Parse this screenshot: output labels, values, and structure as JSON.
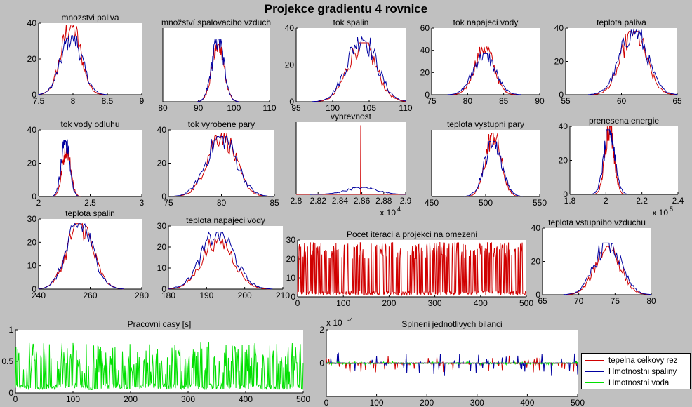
{
  "figure": {
    "title": "Projekce gradientu 4 rovnice",
    "legend": [
      {
        "label": "tepelna celkovy rez",
        "color": "#d00000"
      },
      {
        "label": "Hmotnostni spaliny",
        "color": "#0000a0"
      },
      {
        "label": "Hmotnostni voda",
        "color": "#00e000"
      }
    ]
  },
  "chart_data": [
    {
      "id": "mnozstvi-paliva",
      "type": "line",
      "title": "mnozstvi paliva",
      "xlim": [
        7.5,
        9
      ],
      "ylim": [
        0,
        40
      ],
      "xticks": [
        "7.5",
        "8",
        "8.5",
        "9"
      ],
      "yticks": [
        "0",
        "20",
        "40"
      ],
      "series": [
        {
          "color": "#d00000",
          "peak_x": 7.97,
          "peak_y": 39,
          "width": 0.14
        },
        {
          "color": "#0000a0",
          "peak_x": 7.98,
          "peak_y": 33,
          "width": 0.15
        }
      ]
    },
    {
      "id": "mnozstvi-spalovaciho-vzduch",
      "type": "line",
      "title": "množství spalovaciho vzduch",
      "xlim": [
        80,
        110
      ],
      "ylim": [
        0,
        40
      ],
      "xticks": [
        "80",
        "90",
        "100",
        "110"
      ],
      "yticks": [],
      "series": [
        {
          "color": "#d00000",
          "peak_x": 95.5,
          "peak_y": 31,
          "width": 1.7
        },
        {
          "color": "#0000a0",
          "peak_x": 95.5,
          "peak_y": 34,
          "width": 1.7
        }
      ]
    },
    {
      "id": "tok-spalin",
      "type": "line",
      "title": "tok spalin",
      "xlim": [
        95,
        110
      ],
      "ylim": [
        0,
        40
      ],
      "xticks": [
        "95",
        "100",
        "105",
        "110"
      ],
      "yticks": [
        "0",
        "20",
        "40"
      ],
      "series": [
        {
          "color": "#d00000",
          "peak_x": 104,
          "peak_y": 32,
          "width": 1.9
        },
        {
          "color": "#0000a0",
          "peak_x": 104,
          "peak_y": 35,
          "width": 2.0
        }
      ]
    },
    {
      "id": "tok-napajeci-vody",
      "type": "line",
      "title": "tok napajeci vody",
      "xlim": [
        75,
        90
      ],
      "ylim": [
        0,
        60
      ],
      "xticks": [
        "75",
        "80",
        "85",
        "90"
      ],
      "yticks": [
        "0",
        "20",
        "40",
        "60"
      ],
      "series": [
        {
          "color": "#d00000",
          "peak_x": 82.3,
          "peak_y": 43,
          "width": 1.3
        },
        {
          "color": "#0000a0",
          "peak_x": 82.3,
          "peak_y": 37,
          "width": 1.5
        }
      ]
    },
    {
      "id": "teplota-paliva",
      "type": "line",
      "title": "teplota paliva",
      "xlim": [
        55,
        65
      ],
      "ylim": [
        0,
        40
      ],
      "xticks": [
        "55",
        "60",
        "65"
      ],
      "yticks": [
        "0",
        "20",
        "40"
      ],
      "series": [
        {
          "color": "#d00000",
          "peak_x": 61.1,
          "peak_y": 38,
          "width": 1.1
        },
        {
          "color": "#0000a0",
          "peak_x": 61.1,
          "peak_y": 39,
          "width": 1.2
        }
      ]
    },
    {
      "id": "tok-vody-odluhu",
      "type": "line",
      "title": "tok vody odluhu",
      "xlim": [
        2,
        3
      ],
      "ylim": [
        0,
        40
      ],
      "xticks": [
        "2",
        "2.5",
        "3"
      ],
      "yticks": [
        "0",
        "20",
        "40"
      ],
      "series": [
        {
          "color": "#d00000",
          "peak_x": 2.27,
          "peak_y": 29,
          "width": 0.04
        },
        {
          "color": "#0000a0",
          "peak_x": 2.26,
          "peak_y": 34,
          "width": 0.04
        }
      ]
    },
    {
      "id": "tok-vyrobene-pary",
      "type": "line",
      "title": "tok vyrobene pary",
      "xlim": [
        75,
        85
      ],
      "ylim": [
        0,
        40
      ],
      "xticks": [
        "75",
        "80",
        "85"
      ],
      "yticks": [
        "0",
        "20",
        "40"
      ],
      "series": [
        {
          "color": "#d00000",
          "peak_x": 80,
          "peak_y": 38,
          "width": 1.3
        },
        {
          "color": "#0000a0",
          "peak_x": 80,
          "peak_y": 36,
          "width": 1.4
        }
      ]
    },
    {
      "id": "vyhrevnost",
      "type": "line",
      "title": "vyhrevnost",
      "xlim": [
        2.8,
        2.9
      ],
      "ylim": [
        0,
        230
      ],
      "xticks": [
        "2.8",
        "2.82",
        "2.84",
        "2.86",
        "2.88",
        "2.9"
      ],
      "yticks": [],
      "x_multiplier": "x 10",
      "x_exponent": "4",
      "series": [
        {
          "color": "#d00000",
          "spike_x": 2.859,
          "spike_y": 220
        },
        {
          "color": "#0000a0",
          "peak_x": 2.86,
          "peak_y": 22,
          "width": 0.014
        }
      ]
    },
    {
      "id": "teplota-vystupni-pary",
      "type": "line",
      "title": "teplota vystupni pary",
      "xlim": [
        450,
        550
      ],
      "ylim": [
        0,
        40
      ],
      "xticks": [
        "450",
        "500",
        "550"
      ],
      "yticks": [],
      "series": [
        {
          "color": "#d00000",
          "peak_x": 507,
          "peak_y": 38,
          "width": 7
        },
        {
          "color": "#0000a0",
          "peak_x": 507,
          "peak_y": 33,
          "width": 8
        }
      ]
    },
    {
      "id": "prenesena-energie",
      "type": "line",
      "title": "prenesena energie",
      "xlim": [
        1.8,
        2.4
      ],
      "ylim": [
        0,
        40
      ],
      "xticks": [
        "1.8",
        "2",
        "2.2",
        "2.4"
      ],
      "yticks": [
        "0",
        "20",
        "40"
      ],
      "x_multiplier": "x 10",
      "x_exponent": "5",
      "series": [
        {
          "color": "#d00000",
          "peak_x": 2.02,
          "peak_y": 40,
          "width": 0.025
        },
        {
          "color": "#0000a0",
          "peak_x": 2.02,
          "peak_y": 38,
          "width": 0.03
        }
      ]
    },
    {
      "id": "teplota-spalin",
      "type": "line",
      "title": "teplota spalin",
      "xlim": [
        240,
        280
      ],
      "ylim": [
        0,
        30
      ],
      "xticks": [
        "240",
        "260",
        "280"
      ],
      "yticks": [
        "0",
        "10",
        "20",
        "30"
      ],
      "series": [
        {
          "color": "#d00000",
          "peak_x": 256,
          "peak_y": 28,
          "width": 5
        },
        {
          "color": "#0000a0",
          "peak_x": 256,
          "peak_y": 28,
          "width": 5
        }
      ]
    },
    {
      "id": "teplota-napajeci-vody",
      "type": "line",
      "title": "teplota napajeci vody",
      "xlim": [
        180,
        210
      ],
      "ylim": [
        0,
        30
      ],
      "xticks": [
        "180",
        "190",
        "200",
        "210"
      ],
      "yticks": [
        "0",
        "10",
        "20",
        "30"
      ],
      "series": [
        {
          "color": "#d00000",
          "peak_x": 193,
          "peak_y": 24,
          "width": 4
        },
        {
          "color": "#0000a0",
          "peak_x": 193,
          "peak_y": 27,
          "width": 4.2
        }
      ]
    },
    {
      "id": "pocet-iteraci",
      "type": "line",
      "title": "Pocet iteraci a projekci na omezeni",
      "xlim": [
        0,
        500
      ],
      "ylim": [
        0,
        30
      ],
      "xticks": [
        "0",
        "100",
        "200",
        "300",
        "400",
        "500"
      ],
      "yticks": [
        "0",
        "10",
        "20",
        "30"
      ],
      "series": [
        {
          "color": "#d00000",
          "kind": "spikes",
          "low": 1,
          "high": [
            20,
            29
          ],
          "n": 500
        }
      ]
    },
    {
      "id": "teplota-vstupniho-vzduchu",
      "type": "line",
      "title": "teplota vstupniho vzduchu",
      "xlim": [
        65,
        80
      ],
      "ylim": [
        0,
        40
      ],
      "xticks": [
        "65",
        "70",
        "75",
        "80"
      ],
      "yticks": [
        "0",
        "20",
        "40"
      ],
      "series": [
        {
          "color": "#d00000",
          "peak_x": 74,
          "peak_y": 29,
          "width": 1.7
        },
        {
          "color": "#0000a0",
          "peak_x": 74,
          "peak_y": 31,
          "width": 1.8
        }
      ]
    },
    {
      "id": "pracovni-casy",
      "type": "line",
      "title": "Pracovni casy [s]",
      "xlim": [
        0,
        500
      ],
      "ylim": [
        0,
        1
      ],
      "xticks": [
        "0",
        "100",
        "200",
        "300",
        "400",
        "500"
      ],
      "yticks": [
        "0",
        "0.5",
        "1"
      ],
      "series": [
        {
          "color": "#00e000",
          "kind": "spikes",
          "low": 0.05,
          "high": [
            0.3,
            0.8
          ],
          "n": 500
        }
      ]
    },
    {
      "id": "splneni-bilanci",
      "type": "line",
      "title": "Splneni jednotlivych bilanci",
      "xlim": [
        0,
        500
      ],
      "ylim": [
        -2,
        2
      ],
      "xticks": [
        "0",
        "100",
        "200",
        "300",
        "400",
        "500"
      ],
      "yticks": [
        "0",
        "2"
      ],
      "y_multiplier": "x 10",
      "y_exponent": "-4",
      "series": [
        {
          "color": "#d00000",
          "kind": "bursts",
          "amp": 0.5
        },
        {
          "color": "#0000a0",
          "kind": "bursts",
          "amp": 0.7
        },
        {
          "color": "#00e000",
          "kind": "bursts",
          "amp": 0.1
        }
      ]
    }
  ]
}
